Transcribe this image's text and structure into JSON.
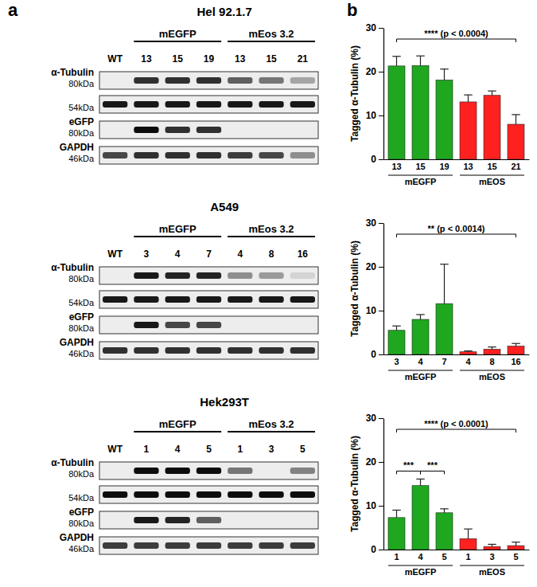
{
  "panel_labels": [
    "a",
    "b"
  ],
  "blots": [
    {
      "title": "Hel 92.1.7",
      "lanes": [
        "WT",
        "13",
        "15",
        "19",
        "13",
        "15",
        "21"
      ],
      "groups": [
        null,
        "mEGFP",
        "mEGFP",
        "mEGFP",
        "mEos 3.2",
        "mEos 3.2",
        "mEos 3.2"
      ],
      "rows": [
        {
          "label": "α-Tubulin",
          "bands": [
            {
              "size": "80kDa",
              "intensity": [
                0,
                0.8,
                0.8,
                0.8,
                0.6,
                0.5,
                0.3
              ]
            },
            {
              "size": "54kDa",
              "intensity": [
                0.9,
                0.9,
                0.9,
                0.9,
                0.9,
                0.9,
                0.9
              ]
            }
          ]
        },
        {
          "label": "eGFP",
          "bands": [
            {
              "size": "80kDa",
              "intensity": [
                0,
                0.95,
                0.8,
                0.8,
                0,
                0,
                0
              ]
            }
          ]
        },
        {
          "label": "GAPDH",
          "bands": [
            {
              "size": "46kDa",
              "intensity": [
                0.7,
                0.8,
                0.8,
                0.8,
                0.75,
                0.7,
                0.4
              ]
            }
          ]
        }
      ]
    },
    {
      "title": "A549",
      "lanes": [
        "WT",
        "3",
        "4",
        "7",
        "4",
        "8",
        "16"
      ],
      "groups": [
        null,
        "mEGFP",
        "mEGFP",
        "mEGFP",
        "mEos 3.2",
        "mEos 3.2",
        "mEos 3.2"
      ],
      "rows": [
        {
          "label": "α-Tubulin",
          "bands": [
            {
              "size": "80kDa",
              "intensity": [
                0,
                0.9,
                0.85,
                0.85,
                0.4,
                0.35,
                0.1
              ]
            },
            {
              "size": "54kDa",
              "intensity": [
                0.9,
                0.9,
                0.9,
                0.9,
                0.9,
                0.9,
                0.9
              ]
            }
          ]
        },
        {
          "label": "eGFP",
          "bands": [
            {
              "size": "80kDa",
              "intensity": [
                0,
                0.9,
                0.7,
                0.7,
                0,
                0,
                0
              ]
            }
          ]
        },
        {
          "label": "GAPDH",
          "bands": [
            {
              "size": "46kDa",
              "intensity": [
                0.8,
                0.8,
                0.8,
                0.8,
                0.8,
                0.8,
                0.8
              ]
            }
          ]
        }
      ]
    },
    {
      "title": "Hek293T",
      "lanes": [
        "WT",
        "1",
        "4",
        "5",
        "1",
        "3",
        "5"
      ],
      "groups": [
        null,
        "mEGFP",
        "mEGFP",
        "mEGFP",
        "mEos 3.2",
        "mEos 3.2",
        "mEos 3.2"
      ],
      "rows": [
        {
          "label": "α-Tubulin",
          "bands": [
            {
              "size": "80kDa",
              "intensity": [
                0,
                0.95,
                0.95,
                0.95,
                0.5,
                0,
                0.45
              ]
            },
            {
              "size": "54kDa",
              "intensity": [
                0.95,
                0.95,
                0.95,
                0.95,
                0.95,
                0.95,
                0.95
              ]
            }
          ]
        },
        {
          "label": "eGFP",
          "bands": [
            {
              "size": "80kDa",
              "intensity": [
                0,
                0.9,
                0.85,
                0.6,
                0,
                0,
                0
              ]
            }
          ]
        },
        {
          "label": "GAPDH",
          "bands": [
            {
              "size": "46kDa",
              "intensity": [
                0.75,
                0.75,
                0.75,
                0.75,
                0.75,
                0.75,
                0.75
              ]
            }
          ]
        }
      ]
    }
  ],
  "chart_data": [
    {
      "type": "bar",
      "y_label": "Tagged α-Tubulin (%)",
      "categories": [
        "13",
        "15",
        "19",
        "13",
        "15",
        "21"
      ],
      "groups": [
        "mEGFP",
        "mEGFP",
        "mEGFP",
        "mEOS",
        "mEOS",
        "mEOS"
      ],
      "values": [
        21.3,
        21.4,
        18.1,
        13.1,
        14.6,
        8.0
      ],
      "errors": [
        2.2,
        2.2,
        2.5,
        1.6,
        1.0,
        2.2
      ],
      "colors": [
        "#1fa81f",
        "#1fa81f",
        "#1fa81f",
        "#ff2020",
        "#ff2020",
        "#ff2020"
      ],
      "ylim": [
        0,
        30
      ],
      "yticks": [
        0,
        10,
        20,
        30
      ],
      "comparisons": [
        {
          "label": "**** (p < 0.0004)",
          "from": 0,
          "to": 5
        }
      ]
    },
    {
      "type": "bar",
      "y_label": "Tagged α-Tubulin (%)",
      "categories": [
        "3",
        "4",
        "7",
        "4",
        "8",
        "16"
      ],
      "groups": [
        "mEGFP",
        "mEGFP",
        "mEGFP",
        "mEOS",
        "mEOS",
        "mEOS"
      ],
      "values": [
        5.5,
        8.0,
        11.6,
        0.6,
        1.2,
        1.9
      ],
      "errors": [
        1.0,
        1.1,
        9.0,
        0.2,
        0.5,
        0.6
      ],
      "colors": [
        "#1fa81f",
        "#1fa81f",
        "#1fa81f",
        "#ff2020",
        "#ff2020",
        "#ff2020"
      ],
      "ylim": [
        0,
        30
      ],
      "yticks": [
        0,
        10,
        20,
        30
      ],
      "comparisons": [
        {
          "label": "** (p < 0.0014)",
          "from": 0,
          "to": 5
        }
      ]
    },
    {
      "type": "bar",
      "y_label": "Tagged α-Tubulin (%)",
      "categories": [
        "1",
        "4",
        "5",
        "1",
        "3",
        "5"
      ],
      "groups": [
        "mEGFP",
        "mEGFP",
        "mEGFP",
        "mEOS",
        "mEOS",
        "mEOS"
      ],
      "values": [
        7.3,
        14.6,
        8.4,
        2.5,
        0.7,
        0.9
      ],
      "errors": [
        1.7,
        1.5,
        0.9,
        2.2,
        0.5,
        0.8
      ],
      "colors": [
        "#1fa81f",
        "#1fa81f",
        "#1fa81f",
        "#ff2020",
        "#ff2020",
        "#ff2020"
      ],
      "ylim": [
        0,
        30
      ],
      "yticks": [
        0,
        10,
        20,
        30
      ],
      "comparisons": [
        {
          "label": "**** (p < 0.0001)",
          "from": 0,
          "to": 5
        },
        {
          "label": "***",
          "from": 0,
          "to": 1
        },
        {
          "label": "***",
          "from": 1,
          "to": 2
        }
      ]
    }
  ]
}
